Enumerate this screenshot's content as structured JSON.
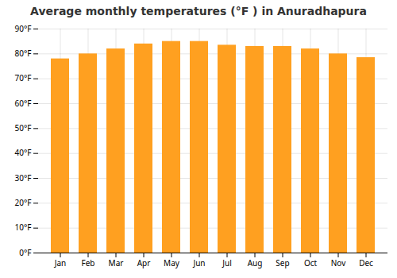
{
  "chart_data": {
    "type": "bar",
    "title": "Average monthly temperatures (°F ) in Anuradhapura",
    "categories": [
      "Jan",
      "Feb",
      "Mar",
      "Apr",
      "May",
      "Jun",
      "Jul",
      "Aug",
      "Sep",
      "Oct",
      "Nov",
      "Dec"
    ],
    "values": [
      78,
      80,
      82,
      84,
      85,
      85,
      83.5,
      83,
      83,
      82,
      80,
      78.5
    ],
    "color": "#FFA020",
    "ylim": [
      0,
      90
    ],
    "yticks": [
      {
        "value": 0,
        "label": "0°F"
      },
      {
        "value": 10,
        "label": "10°F"
      },
      {
        "value": 20,
        "label": "20°F"
      },
      {
        "value": 30,
        "label": "30°F"
      },
      {
        "value": 40,
        "label": "40°F"
      },
      {
        "value": 50,
        "label": "50°F"
      },
      {
        "value": 60,
        "label": "60°F"
      },
      {
        "value": 70,
        "label": "70°F"
      },
      {
        "value": 80,
        "label": "80°F"
      },
      {
        "value": 90,
        "label": "90°F"
      }
    ],
    "grid": true
  }
}
